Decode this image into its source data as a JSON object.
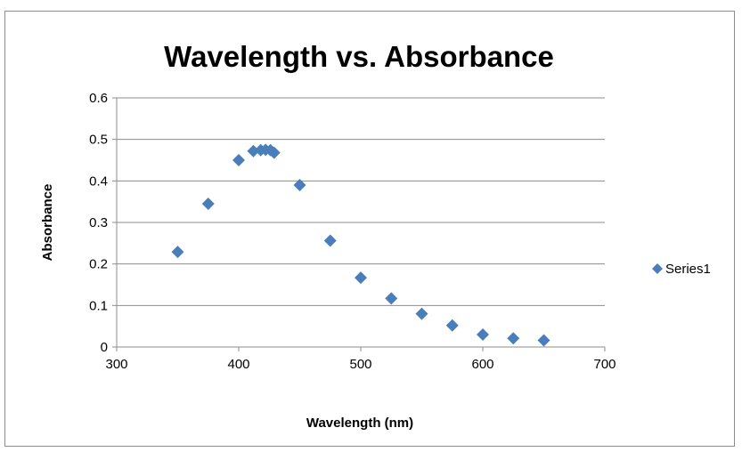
{
  "chart_data": {
    "type": "scatter",
    "title": "Wavelength vs. Absorbance",
    "xlabel": "Wavelength (nm)",
    "ylabel": "Absorbance",
    "xlim": [
      300,
      700
    ],
    "ylim": [
      0,
      0.6
    ],
    "x_ticks": [
      "300",
      "400",
      "500",
      "600",
      "700"
    ],
    "y_ticks": [
      "0",
      "0.1",
      "0.2",
      "0.3",
      "0.4",
      "0.5",
      "0.6"
    ],
    "grid": "horizontal major gridlines",
    "legend": "right",
    "marker": "diamond",
    "series": [
      {
        "name": "Series1",
        "color": "#4a7ebb",
        "points": [
          {
            "x": 350,
            "y": 0.229
          },
          {
            "x": 375,
            "y": 0.345
          },
          {
            "x": 400,
            "y": 0.45
          },
          {
            "x": 412,
            "y": 0.472
          },
          {
            "x": 418,
            "y": 0.474
          },
          {
            "x": 422,
            "y": 0.475
          },
          {
            "x": 426,
            "y": 0.474
          },
          {
            "x": 429,
            "y": 0.468
          },
          {
            "x": 450,
            "y": 0.39
          },
          {
            "x": 475,
            "y": 0.256
          },
          {
            "x": 500,
            "y": 0.167
          },
          {
            "x": 525,
            "y": 0.117
          },
          {
            "x": 550,
            "y": 0.08
          },
          {
            "x": 575,
            "y": 0.052
          },
          {
            "x": 600,
            "y": 0.03
          },
          {
            "x": 625,
            "y": 0.021
          },
          {
            "x": 650,
            "y": 0.016
          }
        ]
      }
    ]
  }
}
